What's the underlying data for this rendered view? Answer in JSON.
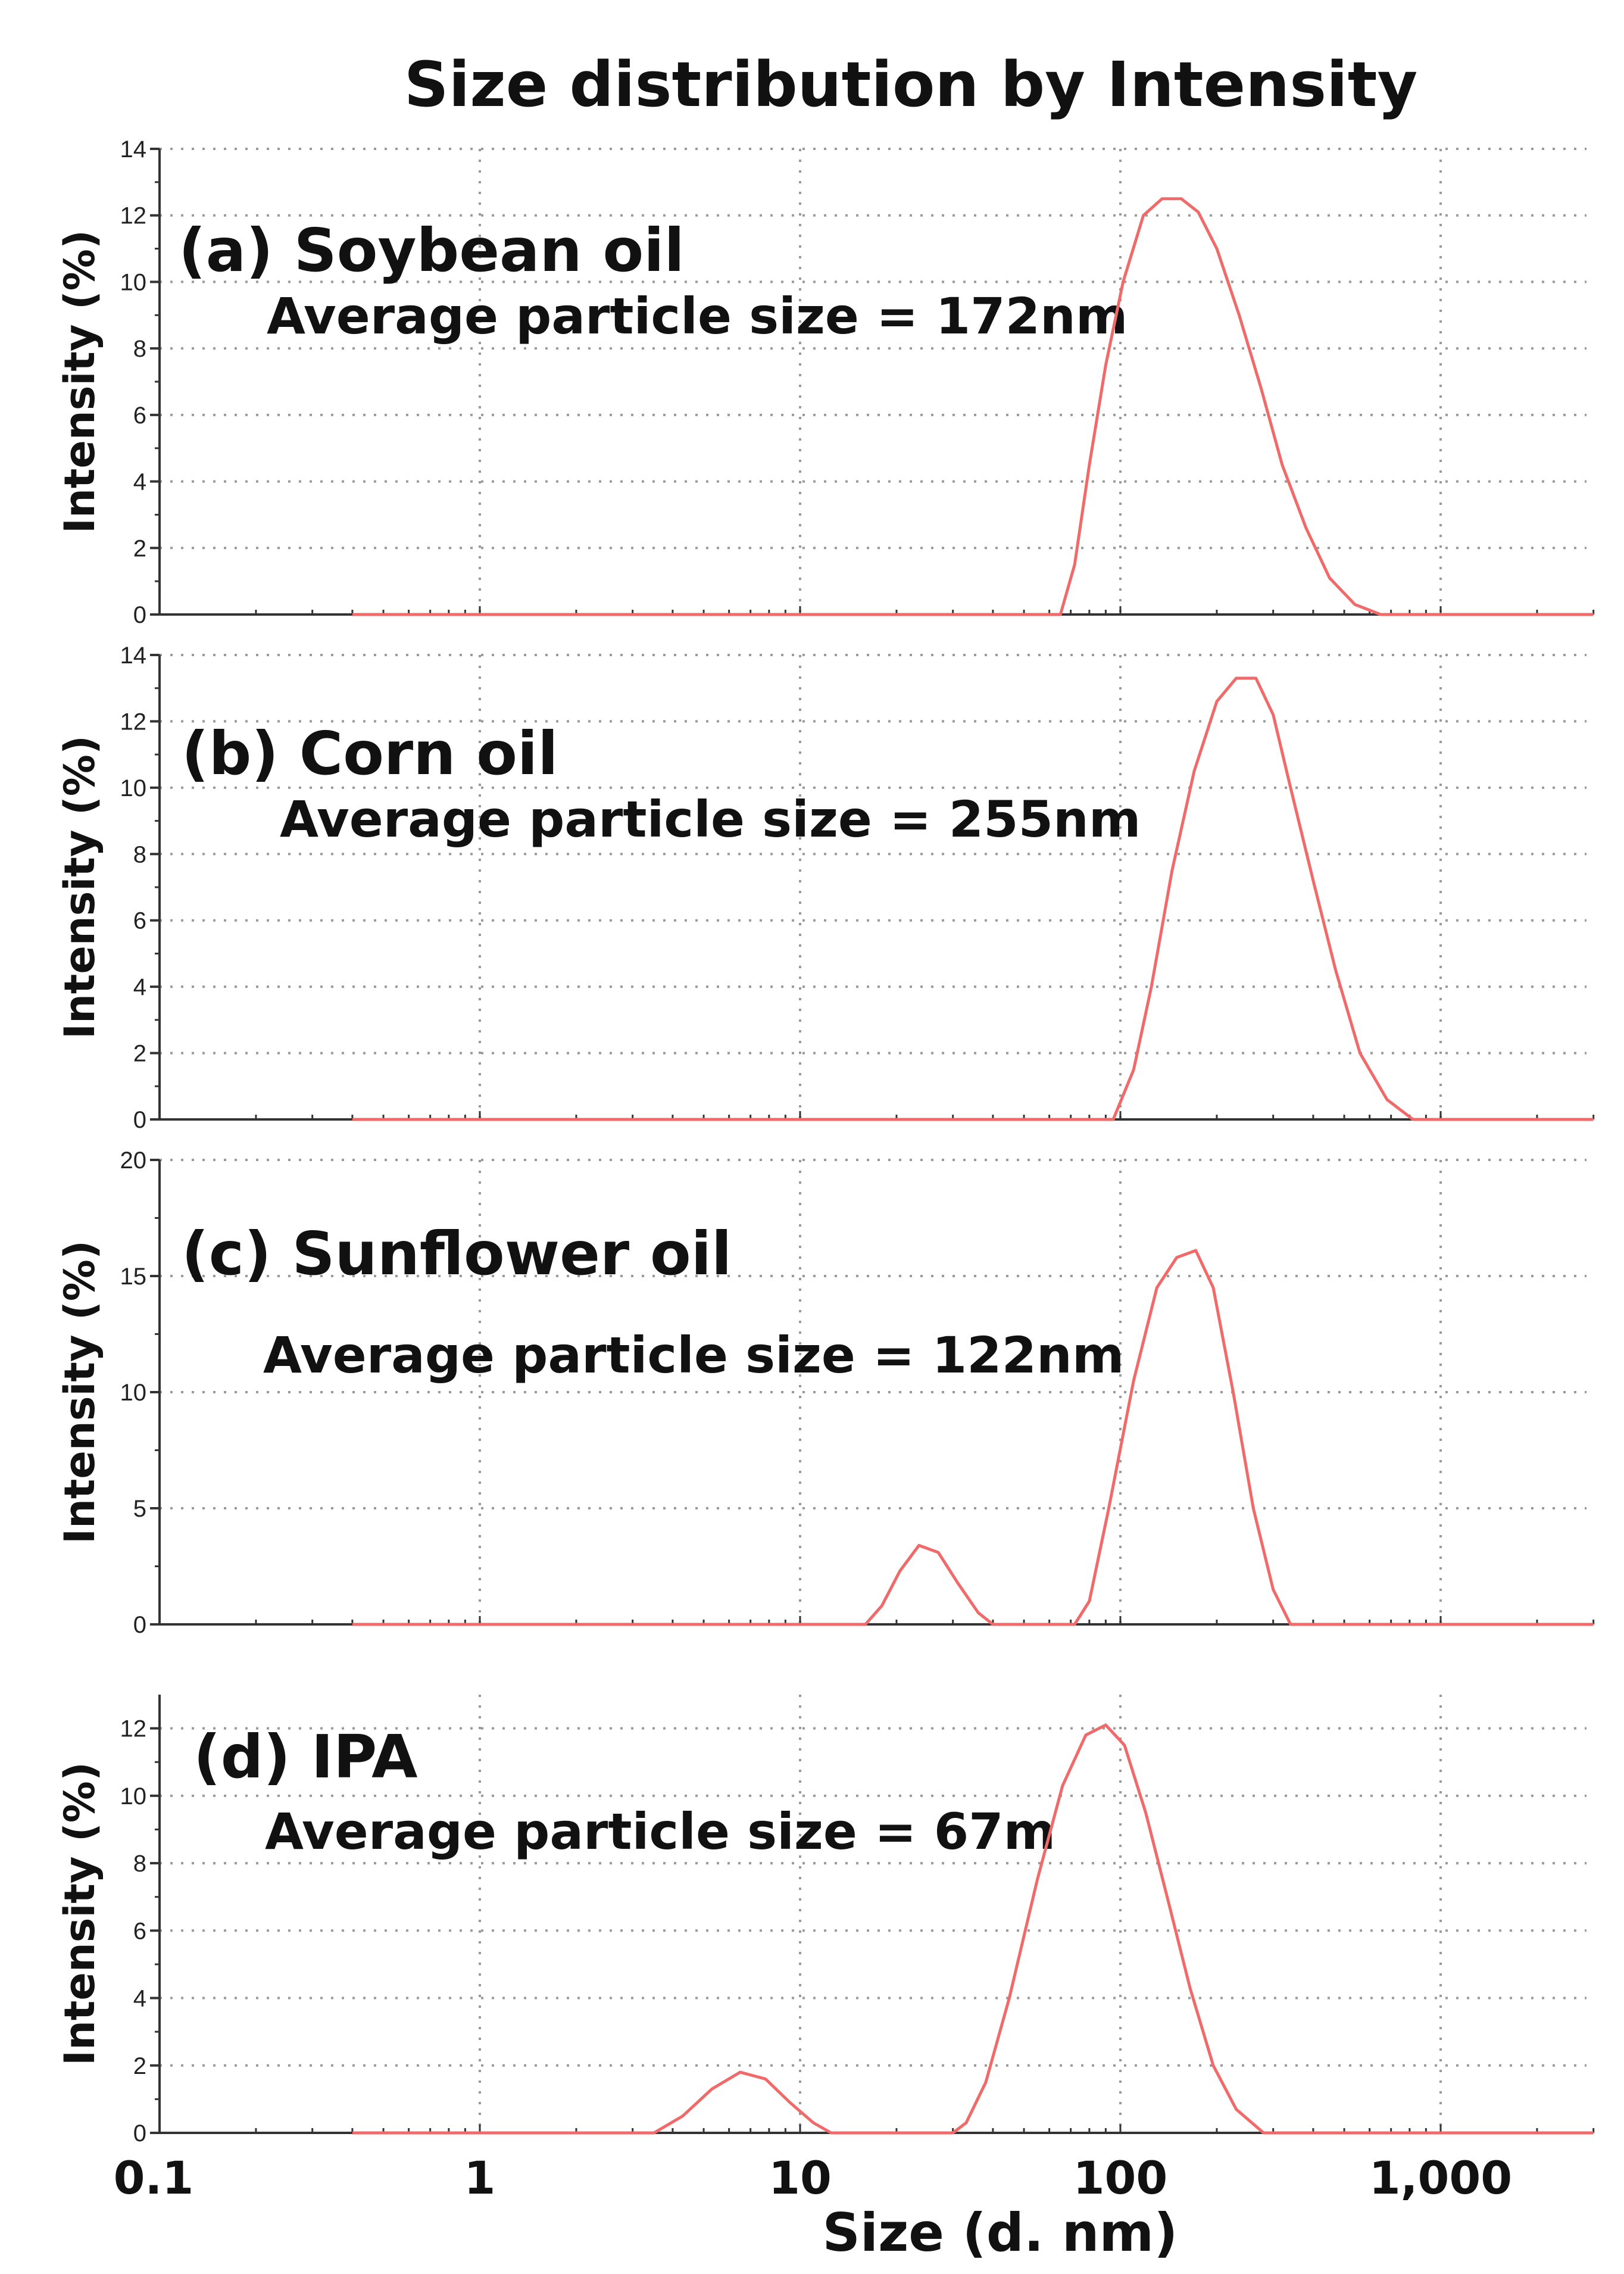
{
  "chart_data": {
    "type": "line",
    "title": "Size distribution by Intensity",
    "xlabel": "Size (d. nm)",
    "xscale": "log",
    "xlim": [
      0.1,
      3000
    ],
    "x_ticks": [
      {
        "value": 0.1,
        "label": "0.1"
      },
      {
        "value": 1,
        "label": "1"
      },
      {
        "value": 10,
        "label": "10"
      },
      {
        "value": 100,
        "label": "100"
      },
      {
        "value": 1000,
        "label": "1,000"
      }
    ],
    "grid": true,
    "colors": {
      "curve": "#f06a6a",
      "axis": "#333333",
      "grid": "#9a9a9a"
    },
    "panels": [
      {
        "label": "(a) Soybean oil",
        "subtitle": "Average particle size = 172nm",
        "ylabel": "Intensity (%)",
        "ylim": [
          0,
          14
        ],
        "y_ticks": [
          0,
          2,
          4,
          6,
          8,
          10,
          12,
          14
        ],
        "series": [
          {
            "name": "Soybean oil",
            "points": [
              [
                0.4,
                0
              ],
              [
                65,
                0
              ],
              [
                72,
                1.5
              ],
              [
                80,
                4.5
              ],
              [
                90,
                7.5
              ],
              [
                102,
                10
              ],
              [
                118,
                12
              ],
              [
                135,
                12.5
              ],
              [
                155,
                12.5
              ],
              [
                175,
                12.1
              ],
              [
                200,
                11
              ],
              [
                235,
                9
              ],
              [
                275,
                6.8
              ],
              [
                320,
                4.5
              ],
              [
                380,
                2.6
              ],
              [
                450,
                1.1
              ],
              [
                540,
                0.3
              ],
              [
                650,
                0
              ],
              [
                3000,
                0
              ]
            ]
          }
        ]
      },
      {
        "label": "(b) Corn oil",
        "subtitle": "Average particle size = 255nm",
        "ylabel": "Intensity (%)",
        "ylim": [
          0,
          14
        ],
        "y_ticks": [
          0,
          2,
          4,
          6,
          8,
          10,
          12,
          14
        ],
        "series": [
          {
            "name": "Corn oil",
            "points": [
              [
                0.4,
                0
              ],
              [
                95,
                0
              ],
              [
                110,
                1.5
              ],
              [
                125,
                4
              ],
              [
                145,
                7.5
              ],
              [
                170,
                10.5
              ],
              [
                200,
                12.6
              ],
              [
                230,
                13.3
              ],
              [
                265,
                13.3
              ],
              [
                300,
                12.2
              ],
              [
                340,
                10
              ],
              [
                400,
                7.2
              ],
              [
                470,
                4.5
              ],
              [
                560,
                2
              ],
              [
                680,
                0.6
              ],
              [
                820,
                0
              ],
              [
                3000,
                0
              ]
            ]
          }
        ]
      },
      {
        "label": "(c) Sunflower oil",
        "subtitle": "Average particle size = 122nm",
        "ylabel": "Intensity (%)",
        "ylim": [
          0,
          20
        ],
        "y_ticks": [
          0,
          5,
          10,
          15,
          20
        ],
        "series": [
          {
            "name": "Sunflower oil",
            "points": [
              [
                0.4,
                0
              ],
              [
                16,
                0
              ],
              [
                18,
                0.8
              ],
              [
                20.5,
                2.3
              ],
              [
                23.5,
                3.4
              ],
              [
                27,
                3.1
              ],
              [
                31,
                1.8
              ],
              [
                36,
                0.5
              ],
              [
                40,
                0
              ],
              [
                72,
                0
              ],
              [
                80,
                1
              ],
              [
                92,
                5
              ],
              [
                110,
                10.5
              ],
              [
                130,
                14.5
              ],
              [
                150,
                15.8
              ],
              [
                172,
                16.1
              ],
              [
                195,
                14.5
              ],
              [
                225,
                10
              ],
              [
                260,
                5
              ],
              [
                300,
                1.5
              ],
              [
                340,
                0
              ],
              [
                3000,
                0
              ]
            ]
          }
        ]
      },
      {
        "label": "(d) IPA",
        "subtitle": "Average particle size = 67m",
        "ylabel": "Intensity (%)",
        "ylim": [
          0,
          13
        ],
        "y_ticks": [
          0,
          2,
          4,
          6,
          8,
          10,
          12
        ],
        "series": [
          {
            "name": "IPA",
            "points": [
              [
                0.4,
                0
              ],
              [
                3.5,
                0
              ],
              [
                4.3,
                0.5
              ],
              [
                5.3,
                1.3
              ],
              [
                6.5,
                1.8
              ],
              [
                7.8,
                1.6
              ],
              [
                9.3,
                0.9
              ],
              [
                11,
                0.3
              ],
              [
                12.5,
                0
              ],
              [
                30,
                0
              ],
              [
                33,
                0.3
              ],
              [
                38,
                1.5
              ],
              [
                45,
                4
              ],
              [
                55,
                7.5
              ],
              [
                66,
                10.3
              ],
              [
                78,
                11.8
              ],
              [
                90,
                12.1
              ],
              [
                103,
                11.5
              ],
              [
                120,
                9.5
              ],
              [
                140,
                7
              ],
              [
                165,
                4.3
              ],
              [
                195,
                2
              ],
              [
                230,
                0.7
              ],
              [
                280,
                0
              ],
              [
                3000,
                0
              ]
            ]
          }
        ]
      }
    ]
  }
}
